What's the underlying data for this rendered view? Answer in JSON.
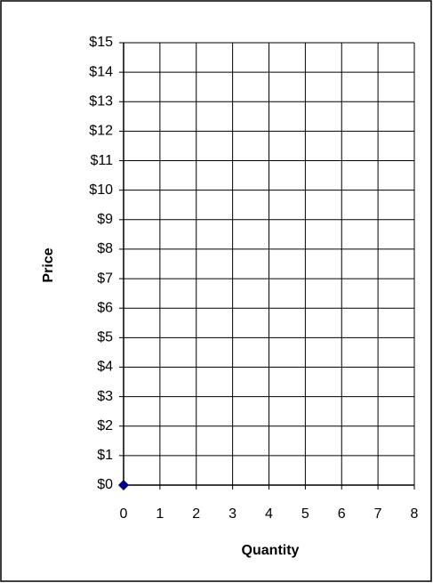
{
  "chart_data": {
    "type": "scatter",
    "x": [
      0
    ],
    "values": [
      0
    ],
    "color": "#000080",
    "xlabel": "Quantity",
    "ylabel": "Price",
    "xlim": [
      0,
      8
    ],
    "xticks": [
      0,
      1,
      2,
      3,
      4,
      5,
      6,
      7,
      8
    ],
    "ylim": [
      0,
      15
    ],
    "yticks": [
      {
        "value": 0,
        "label": "$0"
      },
      {
        "value": 1,
        "label": "$1"
      },
      {
        "value": 2,
        "label": "$2"
      },
      {
        "value": 3,
        "label": "$3"
      },
      {
        "value": 4,
        "label": "$4"
      },
      {
        "value": 5,
        "label": "$5"
      },
      {
        "value": 6,
        "label": "$6"
      },
      {
        "value": 7,
        "label": "$7"
      },
      {
        "value": 8,
        "label": "$8"
      },
      {
        "value": 9,
        "label": "$9"
      },
      {
        "value": 10,
        "label": "$10"
      },
      {
        "value": 11,
        "label": "$11"
      },
      {
        "value": 12,
        "label": "$12"
      },
      {
        "value": 13,
        "label": "$13"
      },
      {
        "value": 14,
        "label": "$14"
      },
      {
        "value": 15,
        "label": "$15"
      }
    ],
    "grid": true
  }
}
